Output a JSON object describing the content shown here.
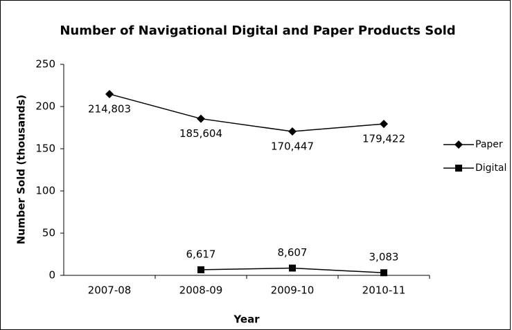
{
  "chart_data": {
    "type": "line",
    "title": "Number of Navigational Digital and Paper Products Sold",
    "xlabel": "Year",
    "ylabel": "Number Sold (thousands)",
    "categories": [
      "2007-08",
      "2008-09",
      "2009-10",
      "2010-11"
    ],
    "series": [
      {
        "name": "Paper",
        "color": "#000000",
        "marker": "diamond",
        "label_position": "below",
        "values": [
          214.803,
          185.604,
          170.447,
          179.422
        ],
        "value_labels": [
          "214,803",
          "185,604",
          "170,447",
          "179,422"
        ]
      },
      {
        "name": "Digital",
        "color": "#000000",
        "marker": "square",
        "label_position": "above",
        "values": [
          null,
          6.617,
          8.607,
          3.083
        ],
        "value_labels": [
          null,
          "6,617",
          "8,607",
          "3,083"
        ]
      }
    ],
    "ylim": [
      0,
      250
    ],
    "yticks": [
      0,
      50,
      100,
      150,
      200,
      250
    ],
    "grid": false,
    "legend": "right"
  }
}
